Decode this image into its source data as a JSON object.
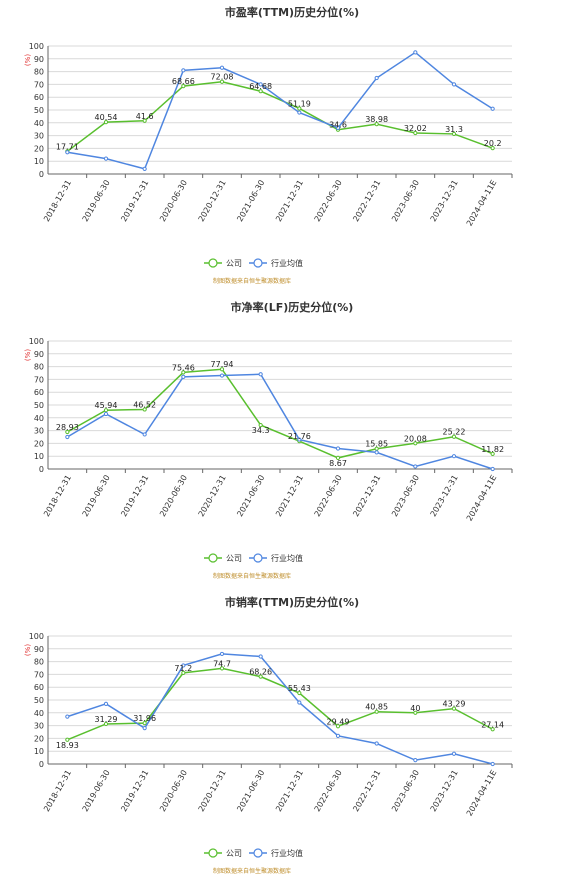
{
  "colors": {
    "company": "#59bf2e",
    "industry": "#4f86e0",
    "grid": "#d9d9d9",
    "axis": "#666666"
  },
  "charts": [
    {
      "title": "市盈率(TTM)历史分位(%)",
      "unit": "(%)",
      "legend": {
        "company": "公司",
        "industry": "行业均值"
      },
      "source": "制图数据来自恒生聚源数据库"
    },
    {
      "title": "市净率(LF)历史分位(%)",
      "unit": "(%)",
      "legend": {
        "company": "公司",
        "industry": "行业均值"
      },
      "source": "制图数据来自恒生聚源数据库"
    },
    {
      "title": "市销率(TTM)历史分位(%)",
      "unit": "(%)",
      "legend": {
        "company": "公司",
        "industry": "行业均值"
      },
      "source": "制图数据来自恒生聚源数据库"
    }
  ],
  "chart_data": [
    {
      "type": "line",
      "title": "市盈率(TTM)历史分位(%)",
      "ylabel": "(%)",
      "ylim": [
        0,
        100
      ],
      "yticks": [
        0,
        10,
        20,
        30,
        40,
        50,
        60,
        70,
        80,
        90,
        100
      ],
      "grid": true,
      "legend_position": "bottom",
      "categories": [
        "2018-12-31",
        "2019-06-30",
        "2019-12-31",
        "2020-06-30",
        "2020-12-31",
        "2021-06-30",
        "2021-12-31",
        "2022-06-30",
        "2022-12-31",
        "2023-06-30",
        "2023-12-31",
        "2024-04-11E"
      ],
      "series": [
        {
          "name": "公司",
          "values": [
            17.71,
            40.54,
            41.6,
            68.66,
            72.08,
            64.68,
            51.19,
            34.6,
            38.98,
            32.02,
            31.3,
            20.2
          ],
          "labels": [
            "17.71",
            "40.54",
            "41.6",
            "68.66",
            "72.08",
            "64.68",
            "51.19",
            "34.6",
            "38.98",
            "32.02",
            "31.3",
            "20.2"
          ]
        },
        {
          "name": "行业均值",
          "values": [
            17,
            12,
            4,
            81,
            83,
            70,
            48,
            36,
            75,
            95,
            70,
            51
          ]
        }
      ]
    },
    {
      "type": "line",
      "title": "市净率(LF)历史分位(%)",
      "ylabel": "(%)",
      "ylim": [
        0,
        100
      ],
      "yticks": [
        0,
        10,
        20,
        30,
        40,
        50,
        60,
        70,
        80,
        90,
        100
      ],
      "grid": true,
      "legend_position": "bottom",
      "categories": [
        "2018-12-31",
        "2019-06-30",
        "2019-12-31",
        "2020-06-30",
        "2020-12-31",
        "2021-06-30",
        "2021-12-31",
        "2022-06-30",
        "2022-12-31",
        "2023-06-30",
        "2023-12-31",
        "2024-04-11E"
      ],
      "series": [
        {
          "name": "公司",
          "values": [
            28.93,
            45.94,
            46.52,
            75.46,
            77.94,
            34.3,
            21.76,
            8.67,
            15.85,
            20.08,
            25.22,
            11.82
          ],
          "labels": [
            "28.93",
            "45.94",
            "46.52",
            "75.46",
            "77.94",
            "34.3",
            "21.76",
            "8.67",
            "15.85",
            "20.08",
            "25.22",
            "11.82"
          ]
        },
        {
          "name": "行业均值",
          "values": [
            25,
            43,
            27,
            72,
            73,
            74,
            23,
            16,
            13,
            2,
            10,
            0
          ]
        }
      ]
    },
    {
      "type": "line",
      "title": "市销率(TTM)历史分位(%)",
      "ylabel": "(%)",
      "ylim": [
        0,
        100
      ],
      "yticks": [
        0,
        10,
        20,
        30,
        40,
        50,
        60,
        70,
        80,
        90,
        100
      ],
      "grid": true,
      "legend_position": "bottom",
      "categories": [
        "2018-12-31",
        "2019-06-30",
        "2019-12-31",
        "2020-06-30",
        "2020-12-31",
        "2021-06-30",
        "2021-12-31",
        "2022-06-30",
        "2022-12-31",
        "2023-06-30",
        "2023-12-31",
        "2024-04-11E"
      ],
      "series": [
        {
          "name": "公司",
          "values": [
            18.93,
            31.29,
            31.96,
            71.2,
            74.7,
            68.26,
            55.43,
            29.49,
            40.85,
            40,
            43.29,
            27.14
          ],
          "labels": [
            "18.93",
            "31.29",
            "31.96",
            "71.2",
            "74.7",
            "68.26",
            "55.43",
            "29.49",
            "40.85",
            "40",
            "43.29",
            "27.14"
          ]
        },
        {
          "name": "行业均值",
          "values": [
            37,
            47,
            28,
            77,
            86,
            84,
            48,
            22,
            16,
            3,
            8,
            0
          ]
        }
      ]
    }
  ]
}
